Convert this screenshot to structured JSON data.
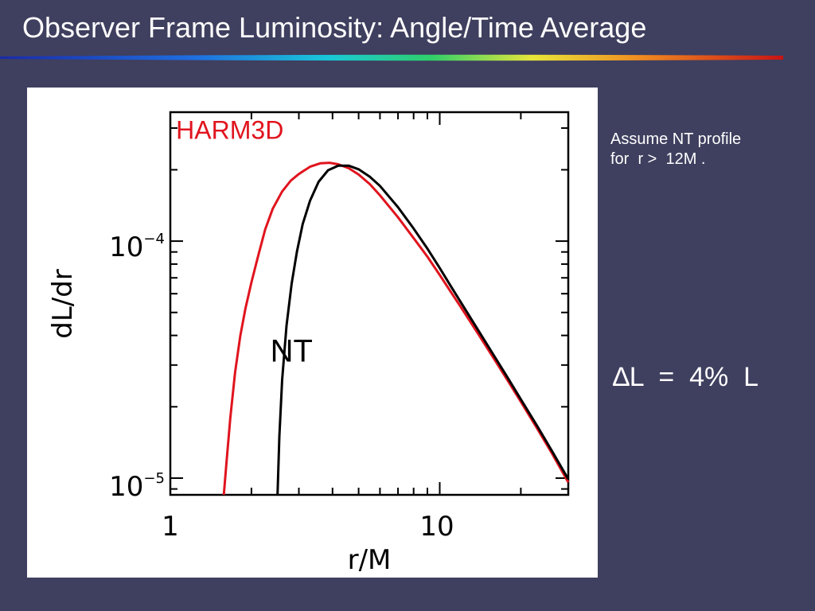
{
  "slide": {
    "title": "Observer Frame Luminosity: Angle/Time Average",
    "note_line1": "Assume NT profile",
    "note_line2": "for  r >  12M .",
    "delta_text": "∆L  =  4%  L"
  },
  "colors": {
    "background": "#3f3f5f",
    "text": "#ffffff",
    "harm3d": "#e0141e",
    "nt": "#000000"
  },
  "chart_data": {
    "type": "line",
    "title": "",
    "xlabel": "r/M",
    "ylabel": "dL/dr",
    "xscale": "log",
    "yscale": "log",
    "xlim": [
      1,
      30
    ],
    "ylim": [
      8.5e-06,
      0.00035
    ],
    "grid": false,
    "x_ticks": [
      {
        "value": 1,
        "label": "1"
      },
      {
        "value": 10,
        "label": "10"
      }
    ],
    "y_ticks": [
      {
        "value": 1e-05,
        "base": "10",
        "exp": "−5"
      },
      {
        "value": 0.0001,
        "base": "10",
        "exp": "−4"
      }
    ],
    "annotations": [
      {
        "text": "HARM3D",
        "color": "#e0141e",
        "x": 1.05,
        "y": 0.00027
      },
      {
        "text": "NT",
        "color": "#000000",
        "x": 2.35,
        "y": 3.1e-05
      }
    ],
    "series": [
      {
        "name": "HARM3D",
        "color": "#e0141e",
        "x": [
          1.58,
          1.62,
          1.67,
          1.74,
          1.82,
          1.9,
          2.0,
          2.12,
          2.25,
          2.4,
          2.6,
          2.8,
          3.0,
          3.3,
          3.6,
          3.9,
          4.2,
          4.6,
          5.0,
          5.5,
          6.0,
          7.0,
          8.0,
          9.0,
          10.0,
          11.0,
          12.0,
          14.0,
          16.0,
          18.0,
          20.0,
          23.0,
          26.0,
          30.0
        ],
        "y": [
          8.5e-06,
          1.2e-05,
          1.8e-05,
          2.8e-05,
          4e-05,
          5.2e-05,
          6.7e-05,
          8.7e-05,
          0.000112,
          0.000137,
          0.000162,
          0.00018,
          0.000192,
          0.000206,
          0.000213,
          0.000214,
          0.000211,
          0.000203,
          0.000191,
          0.000174,
          0.000156,
          0.000126,
          0.000103,
          8.6e-05,
          7.2e-05,
          6.1e-05,
          5.25e-05,
          4e-05,
          3.15e-05,
          2.55e-05,
          2.1e-05,
          1.62e-05,
          1.28e-05,
          9.6e-06
        ]
      },
      {
        "name": "NT",
        "color": "#000000",
        "x": [
          2.5,
          2.54,
          2.6,
          2.7,
          2.82,
          2.95,
          3.1,
          3.3,
          3.55,
          3.85,
          4.2,
          4.6,
          5.0,
          5.5,
          6.0,
          7.0,
          8.0,
          9.0,
          10.0,
          11.0,
          12.0,
          14.0,
          16.0,
          18.0,
          20.0,
          23.0,
          26.0,
          30.0
        ],
        "y": [
          8.5e-06,
          1.5e-05,
          2.6e-05,
          4.4e-05,
          6.6e-05,
          9e-05,
          0.000118,
          0.000148,
          0.000178,
          0.000199,
          0.000208,
          0.000208,
          0.000201,
          0.000187,
          0.000171,
          0.000139,
          0.000113,
          9.3e-05,
          7.7e-05,
          6.45e-05,
          5.5e-05,
          4.15e-05,
          3.25e-05,
          2.62e-05,
          2.15e-05,
          1.66e-05,
          1.31e-05,
          9.9e-06
        ]
      }
    ]
  }
}
